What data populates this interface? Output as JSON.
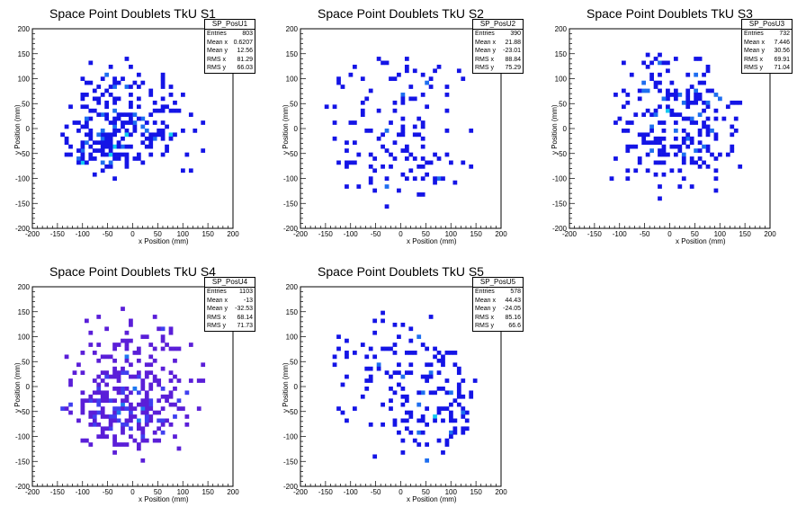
{
  "chart_data": [
    {
      "type": "heatmap",
      "title": "Space Point Doublets TkU S1",
      "xlabel": "x Position (mm)",
      "ylabel": "y Position (mm)",
      "xlim": [
        -200,
        200
      ],
      "ylim": [
        -200,
        200
      ],
      "xticks": [
        "-200",
        "-150",
        "-100",
        "-50",
        "0",
        "50",
        "100",
        "150",
        "200"
      ],
      "yticks": [
        "-200",
        "-150",
        "-100",
        "-50",
        "0",
        "50",
        "100",
        "150",
        "200"
      ],
      "stats": {
        "name": "SP_PosU1",
        "rows": [
          {
            "k": "Entries",
            "v": "803"
          },
          {
            "k": "Mean x",
            "v": "0.6207"
          },
          {
            "k": "Mean y",
            "v": "12.56"
          },
          {
            "k": "RMS x",
            "v": "81.29"
          },
          {
            "k": "RMS y",
            "v": "66.03"
          }
        ]
      },
      "blobs": [
        {
          "x": -60,
          "y": -30,
          "sx": 45,
          "sy": 30,
          "w": 0.6
        },
        {
          "x": 20,
          "y": 5,
          "sx": 60,
          "sy": 35,
          "w": 0.5
        },
        {
          "x": -30,
          "y": 80,
          "sx": 60,
          "sy": 45,
          "w": 0.4
        }
      ],
      "n": 260,
      "seed": 11,
      "palette": "jet"
    },
    {
      "type": "heatmap",
      "title": "Space Point Doublets TkU S2",
      "xlabel": "x Position (mm)",
      "ylabel": "y Position (mm)",
      "xlim": [
        -200,
        200
      ],
      "ylim": [
        -200,
        200
      ],
      "xticks": [
        "-200",
        "-150",
        "-100",
        "-50",
        "0",
        "50",
        "100",
        "150",
        "200"
      ],
      "yticks": [
        "-200",
        "-150",
        "-100",
        "-50",
        "0",
        "50",
        "100",
        "150",
        "200"
      ],
      "stats": {
        "name": "SP_PosU2",
        "rows": [
          {
            "k": "Entries",
            "v": "390"
          },
          {
            "k": "Mean x",
            "v": "21.88"
          },
          {
            "k": "Mean y",
            "v": "-23.01"
          },
          {
            "k": "RMS x",
            "v": "88.84"
          },
          {
            "k": "RMS y",
            "v": "75.29"
          }
        ]
      },
      "blobs": [
        {
          "x": 0,
          "y": -50,
          "sx": 85,
          "sy": 65,
          "w": 0.7
        },
        {
          "x": -20,
          "y": 90,
          "sx": 70,
          "sy": 35,
          "w": 0.3
        }
      ],
      "n": 160,
      "seed": 23,
      "palette": "jet"
    },
    {
      "type": "heatmap",
      "title": "Space Point Doublets TkU S3",
      "xlabel": "x Position (mm)",
      "ylabel": "y Position (mm)",
      "xlim": [
        -200,
        200
      ],
      "ylim": [
        -200,
        200
      ],
      "xticks": [
        "-200",
        "-150",
        "-100",
        "-50",
        "0",
        "50",
        "100",
        "150",
        "200"
      ],
      "yticks": [
        "-200",
        "-150",
        "-100",
        "-50",
        "0",
        "50",
        "100",
        "150",
        "200"
      ],
      "stats": {
        "name": "SP_PosU3",
        "rows": [
          {
            "k": "Entries",
            "v": "732"
          },
          {
            "k": "Mean x",
            "v": "7.446"
          },
          {
            "k": "Mean y",
            "v": "30.56"
          },
          {
            "k": "RMS x",
            "v": "69.91"
          },
          {
            "k": "RMS y",
            "v": "71.04"
          }
        ]
      },
      "blobs": [
        {
          "x": 10,
          "y": 40,
          "sx": 70,
          "sy": 60,
          "w": 0.8
        },
        {
          "x": 0,
          "y": -60,
          "sx": 60,
          "sy": 40,
          "w": 0.2
        }
      ],
      "n": 250,
      "seed": 37,
      "palette": "jet"
    },
    {
      "type": "heatmap",
      "title": "Space Point Doublets TkU S4",
      "xlabel": "x Position (mm)",
      "ylabel": "y Position (mm)",
      "xlim": [
        -200,
        200
      ],
      "ylim": [
        -200,
        200
      ],
      "xticks": [
        "-200",
        "-150",
        "-100",
        "-50",
        "0",
        "50",
        "100",
        "150",
        "200"
      ],
      "yticks": [
        "-200",
        "-150",
        "-100",
        "-50",
        "0",
        "50",
        "100",
        "150",
        "200"
      ],
      "stats": {
        "name": "SP_PosU4",
        "rows": [
          {
            "k": "Entries",
            "v": "1103"
          },
          {
            "k": "Mean x",
            "v": "-13"
          },
          {
            "k": "Mean y",
            "v": "-32.53"
          },
          {
            "k": "RMS x",
            "v": "68.14"
          },
          {
            "k": "RMS y",
            "v": "71.73"
          }
        ]
      },
      "blobs": [
        {
          "x": -10,
          "y": -50,
          "sx": 70,
          "sy": 45,
          "w": 0.7
        },
        {
          "x": -20,
          "y": 60,
          "sx": 70,
          "sy": 50,
          "w": 0.3
        }
      ],
      "n": 330,
      "seed": 41,
      "palette": "violet"
    },
    {
      "type": "heatmap",
      "title": "Space Point Doublets TkU S5",
      "xlabel": "x Position (mm)",
      "ylabel": "y Position (mm)",
      "xlim": [
        -200,
        200
      ],
      "ylim": [
        -200,
        200
      ],
      "xticks": [
        "-200",
        "-150",
        "-100",
        "-50",
        "0",
        "50",
        "100",
        "150",
        "200"
      ],
      "yticks": [
        "-200",
        "-150",
        "-100",
        "-50",
        "0",
        "50",
        "100",
        "150",
        "200"
      ],
      "stats": {
        "name": "SP_PosU5",
        "rows": [
          {
            "k": "Entries",
            "v": "578"
          },
          {
            "k": "Mean x",
            "v": "44.43"
          },
          {
            "k": "Mean y",
            "v": "-24.05"
          },
          {
            "k": "RMS x",
            "v": "85.16"
          },
          {
            "k": "RMS y",
            "v": "66.6"
          }
        ]
      },
      "blobs": [
        {
          "x": 60,
          "y": -30,
          "sx": 80,
          "sy": 60,
          "w": 0.7
        },
        {
          "x": -30,
          "y": 60,
          "sx": 60,
          "sy": 50,
          "w": 0.3
        }
      ],
      "n": 210,
      "seed": 53,
      "palette": "jet"
    }
  ],
  "colors": {
    "frame": "#000000",
    "background": "#ffffff"
  }
}
